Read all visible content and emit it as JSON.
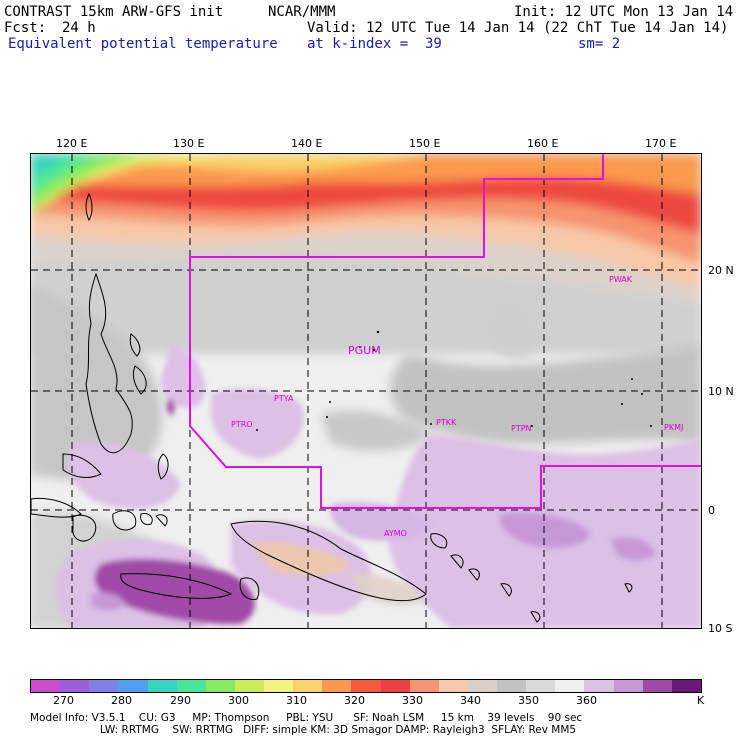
{
  "header": {
    "model": "CONTRAST 15km ARW-GFS init",
    "org": "NCAR/MMM",
    "init": "Init: 12 UTC Mon 13 Jan 14",
    "fcst_label": "Fcst:",
    "fcst_value": "24 h",
    "valid": "Valid: 12 UTC Tue 14 Jan 14 (22 ChT Tue 14 Jan 14)",
    "field": "Equivalent potential temperature",
    "level": "at k-index =  39",
    "smoothing": "sm= 2"
  },
  "map": {
    "lon_labels": [
      "120 E",
      "130 E",
      "140 E",
      "150 E",
      "160 E",
      "170 E"
    ],
    "lat_labels": [
      "20 N",
      "10 N",
      "0",
      "10 S"
    ],
    "stations": [
      "PGUM",
      "PTYA",
      "PTRO",
      "PTKK",
      "PTPN",
      "PKMJ",
      "PWAK",
      "AYMO"
    ]
  },
  "colorbar": {
    "labels": [
      "270",
      "280",
      "290",
      "300",
      "310",
      "320",
      "330",
      "340",
      "350",
      "360"
    ],
    "unit": "K",
    "colors": [
      "#cc4dcc",
      "#9e5fd6",
      "#7f7fe6",
      "#4f9fee",
      "#36d3c0",
      "#48e69a",
      "#84ea60",
      "#c8ec5a",
      "#f4f47a",
      "#fad26a",
      "#fb9a4e",
      "#f55a3e",
      "#ee4040",
      "#f5946e",
      "#f7c8a8",
      "#d9cfc8",
      "#c2c2c2",
      "#dadada",
      "#efefef",
      "#dcc0e6",
      "#c698d8",
      "#a04aa6",
      "#6a1a78"
    ]
  },
  "footer": {
    "line1": "Model Info: V3.5.1    CU: G3     MP: Thompson     PBL: YSU      SF: Noah LSM     15 km    39 levels    90 sec",
    "line2": "LW: RRTMG    SW: RRTMG   DIFF: simple KM: 3D Smagor DAMP: Rayleigh3  SFLAY: Rev MM5"
  }
}
